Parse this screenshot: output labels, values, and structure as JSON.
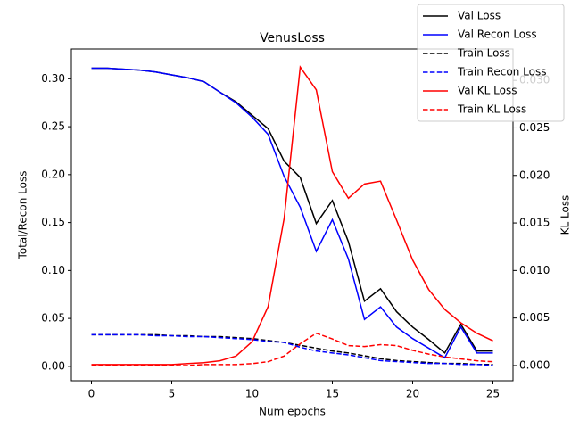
{
  "chart_data": {
    "type": "line",
    "title": "VenusLoss",
    "x_label": "Num epochs",
    "y_label": "Total/Recon Loss",
    "y2_label": "KL Loss",
    "x": [
      0,
      1,
      2,
      3,
      4,
      5,
      6,
      7,
      8,
      9,
      10,
      11,
      12,
      13,
      14,
      15,
      16,
      17,
      18,
      19,
      20,
      21,
      22,
      23,
      24,
      25
    ],
    "xlim": [
      -1.25,
      26.25
    ],
    "xticks": [
      0,
      5,
      10,
      15,
      20,
      25
    ],
    "ylim": [
      -0.015,
      0.331
    ],
    "yticks": [
      {
        "value": 0,
        "label": "0.00"
      },
      {
        "value": 0.05,
        "label": "0.05"
      },
      {
        "value": 0.1,
        "label": "0.10"
      },
      {
        "value": 0.15,
        "label": "0.15"
      },
      {
        "value": 0.2,
        "label": "0.20"
      },
      {
        "value": 0.25,
        "label": "0.25"
      },
      {
        "value": 0.3,
        "label": "0.30"
      }
    ],
    "y2lim": [
      -0.0016,
      0.0333
    ],
    "y2ticks": [
      {
        "value": 0,
        "label": "0.000"
      },
      {
        "value": 0.005,
        "label": "0.005"
      },
      {
        "value": 0.01,
        "label": "0.010"
      },
      {
        "value": 0.015,
        "label": "0.015"
      },
      {
        "value": 0.02,
        "label": "0.020"
      },
      {
        "value": 0.025,
        "label": "0.025"
      },
      {
        "value": 0.03,
        "label": "0.030"
      }
    ],
    "legend": "upper right",
    "series": [
      {
        "name": "Val Loss",
        "color": "#000000",
        "linestyle": "solid",
        "values": [
          0.311,
          0.311,
          0.31,
          0.309,
          0.307,
          0.304,
          0.301,
          0.297,
          0.286,
          0.276,
          0.262,
          0.248,
          0.214,
          0.197,
          0.149,
          0.173,
          0.13,
          0.068,
          0.081,
          0.057,
          0.041,
          0.028,
          0.014,
          0.044,
          0.016,
          0.016
        ]
      },
      {
        "name": "Val Recon Loss",
        "color": "#0000ff",
        "linestyle": "solid",
        "values": [
          0.311,
          0.311,
          0.31,
          0.309,
          0.307,
          0.304,
          0.301,
          0.297,
          0.286,
          0.275,
          0.26,
          0.242,
          0.198,
          0.166,
          0.12,
          0.153,
          0.112,
          0.049,
          0.062,
          0.041,
          0.029,
          0.019,
          0.009,
          0.041,
          0.014,
          0.014
        ]
      },
      {
        "name": "Train Loss",
        "color": "#000000",
        "linestyle": "dashed",
        "values": [
          0.033,
          0.033,
          0.033,
          0.033,
          0.033,
          0.032,
          0.032,
          0.031,
          0.031,
          0.03,
          0.029,
          0.027,
          0.025,
          0.022,
          0.019,
          0.016,
          0.014,
          0.011,
          0.008,
          0.006,
          0.005,
          0.004,
          0.003,
          0.003,
          0.002,
          0.002
        ]
      },
      {
        "name": "Train Recon Loss",
        "color": "#0000ff",
        "linestyle": "dashed",
        "values": [
          0.033,
          0.033,
          0.033,
          0.033,
          0.032,
          0.032,
          0.031,
          0.031,
          0.03,
          0.029,
          0.028,
          0.026,
          0.025,
          0.02,
          0.016,
          0.014,
          0.012,
          0.009,
          0.006,
          0.005,
          0.004,
          0.003,
          0.003,
          0.002,
          0.002,
          0.001
        ]
      },
      {
        "name": "Val KL Loss",
        "color": "#ff0000",
        "linestyle": "solid",
        "axis": "y2",
        "values": [
          0.0001,
          0.0001,
          0.0001,
          0.0001,
          0.0001,
          0.0001,
          0.0002,
          0.0003,
          0.0005,
          0.001,
          0.0025,
          0.0062,
          0.0155,
          0.0314,
          0.029,
          0.0204,
          0.0176,
          0.0191,
          0.0194,
          0.0153,
          0.0111,
          0.008,
          0.0059,
          0.0045,
          0.0034,
          0.0026
        ]
      },
      {
        "name": "Train KL Loss",
        "color": "#ff0000",
        "linestyle": "dashed",
        "axis": "y2",
        "values": [
          0.0,
          0.0,
          0.0,
          0.0,
          0.0,
          0.0,
          0.0,
          0.0001,
          0.0001,
          0.0001,
          0.0002,
          0.0004,
          0.001,
          0.0023,
          0.0034,
          0.0028,
          0.0021,
          0.002,
          0.0022,
          0.0021,
          0.0016,
          0.0012,
          0.0009,
          0.0007,
          0.0005,
          0.0004
        ]
      }
    ]
  }
}
